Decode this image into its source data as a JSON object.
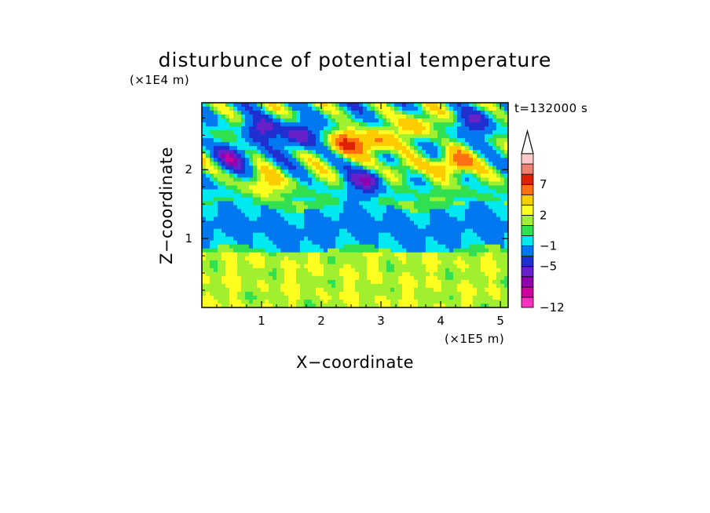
{
  "chart_data": {
    "type": "heatmap",
    "title": "disturbunce of potential temperature",
    "time_label": "t=132000 s",
    "xlabel": "X−coordinate",
    "ylabel": "Z−coordinate",
    "x_unit": "(×1E5 m)",
    "y_unit": "(×1E4 m)",
    "xlim": [
      0,
      5.13
    ],
    "ylim": [
      0,
      2.97
    ],
    "x_ticks": [
      1,
      2,
      3,
      4,
      5
    ],
    "y_ticks": [
      1,
      2
    ],
    "colorbar": {
      "tick_labels": [
        "−12",
        "−5",
        "−1",
        "2",
        "7"
      ],
      "tick_values": [
        -12,
        -5,
        -1,
        2,
        7
      ],
      "levels": [
        -12,
        -10,
        -8,
        -7,
        -5,
        -3,
        -1,
        0,
        1,
        2,
        3,
        5,
        7,
        9,
        11
      ],
      "extend": "max",
      "colors": [
        "#ff30c0",
        "#d000a0",
        "#9000b0",
        "#6820c8",
        "#2030d0",
        "#0078f0",
        "#00e8f0",
        "#30e050",
        "#a0f030",
        "#ffff20",
        "#ffcc00",
        "#ff7010",
        "#e02000",
        "#f08070",
        "#ffc8c8"
      ]
    },
    "field": {
      "description_of_structure": "upper layer (z>1.8) wavy warm/cold anomalies; cyan cold band around z=1.1; yellow/green positive anomalies near ground",
      "features": [
        {
          "x": 1.0,
          "z": 2.6,
          "value": -6
        },
        {
          "x": 0.5,
          "z": 2.2,
          "value": -6
        },
        {
          "x": 1.6,
          "z": 2.5,
          "value": -6
        },
        {
          "x": 2.75,
          "z": 1.85,
          "value": -6
        },
        {
          "x": 2.4,
          "z": 2.4,
          "value": 6
        },
        {
          "x": 2.9,
          "z": 2.4,
          "value": 5
        },
        {
          "x": 3.6,
          "z": 2.65,
          "value": 4
        },
        {
          "x": 4.2,
          "z": 2.1,
          "value": 7
        },
        {
          "x": 4.55,
          "z": 2.7,
          "value": -4
        },
        {
          "x": 3.3,
          "z": 2.0,
          "value": 4
        },
        {
          "x": 1.0,
          "z": 1.8,
          "value": 4
        },
        {
          "x": 2.6,
          "z": 1.1,
          "value": -1
        },
        {
          "x": 2.5,
          "z": 0.4,
          "value": 2
        }
      ]
    }
  }
}
